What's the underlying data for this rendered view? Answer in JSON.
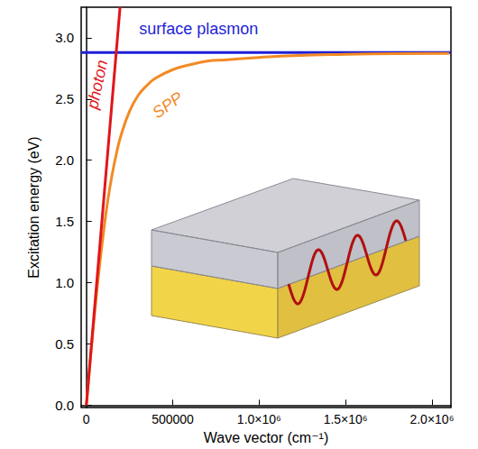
{
  "chart_data": {
    "type": "line",
    "xlabel": "Wave vector (cm⁻¹)",
    "ylabel": "Excitation energy (eV)",
    "xlim": [
      -30000,
      2110000
    ],
    "ylim": [
      -0.02,
      3.25
    ],
    "xticks": [
      0,
      500000,
      {
        "value": 1000000,
        "label": "1.0×10⁶"
      },
      {
        "value": 1500000,
        "label": "1.5×10⁶"
      },
      {
        "value": 2000000,
        "label": "2.0×10⁶"
      }
    ],
    "yticks": [
      {
        "value": 0,
        "label": "0.0"
      },
      {
        "value": 0.5,
        "label": "0.5"
      },
      {
        "value": 1,
        "label": "1.0"
      },
      {
        "value": 1.5,
        "label": "1.5"
      },
      {
        "value": 2,
        "label": "2.0"
      },
      {
        "value": 2.5,
        "label": "2.5"
      },
      {
        "value": 3,
        "label": "3.0"
      }
    ],
    "grid": false,
    "series": [
      {
        "name": "surface plasmon",
        "color": "#1f1fd6",
        "x": [
          -30000,
          2110000
        ],
        "values": [
          2.88,
          2.88
        ]
      },
      {
        "name": "SPP",
        "color": "#f28a24",
        "x": [
          0,
          25000,
          50000,
          75000,
          100000,
          125000,
          150000,
          175000,
          200000,
          250000,
          300000,
          350000,
          400000,
          500000,
          600000,
          700000,
          800000,
          1000000,
          1200000,
          1500000,
          1800000,
          2100000
        ],
        "values": [
          0,
          0.4,
          0.78,
          1.12,
          1.42,
          1.68,
          1.89,
          2.06,
          2.2,
          2.4,
          2.53,
          2.61,
          2.67,
          2.74,
          2.78,
          2.81,
          2.82,
          2.84,
          2.855,
          2.865,
          2.87,
          2.873
        ]
      },
      {
        "name": "photon",
        "color": "#e0161b",
        "x": [
          0,
          195000
        ],
        "values": [
          0,
          3.25
        ]
      }
    ],
    "annotations": [
      {
        "text": "photon",
        "x": 63000,
        "y": 2.62,
        "color": "#e0161b"
      },
      {
        "text": "SPP",
        "x": 470000,
        "y": 2.45,
        "color": "#f28a24"
      },
      {
        "text": "surface plasmon",
        "x": 650000,
        "y": 3.07,
        "color": "#1f1fd6"
      }
    ]
  }
}
